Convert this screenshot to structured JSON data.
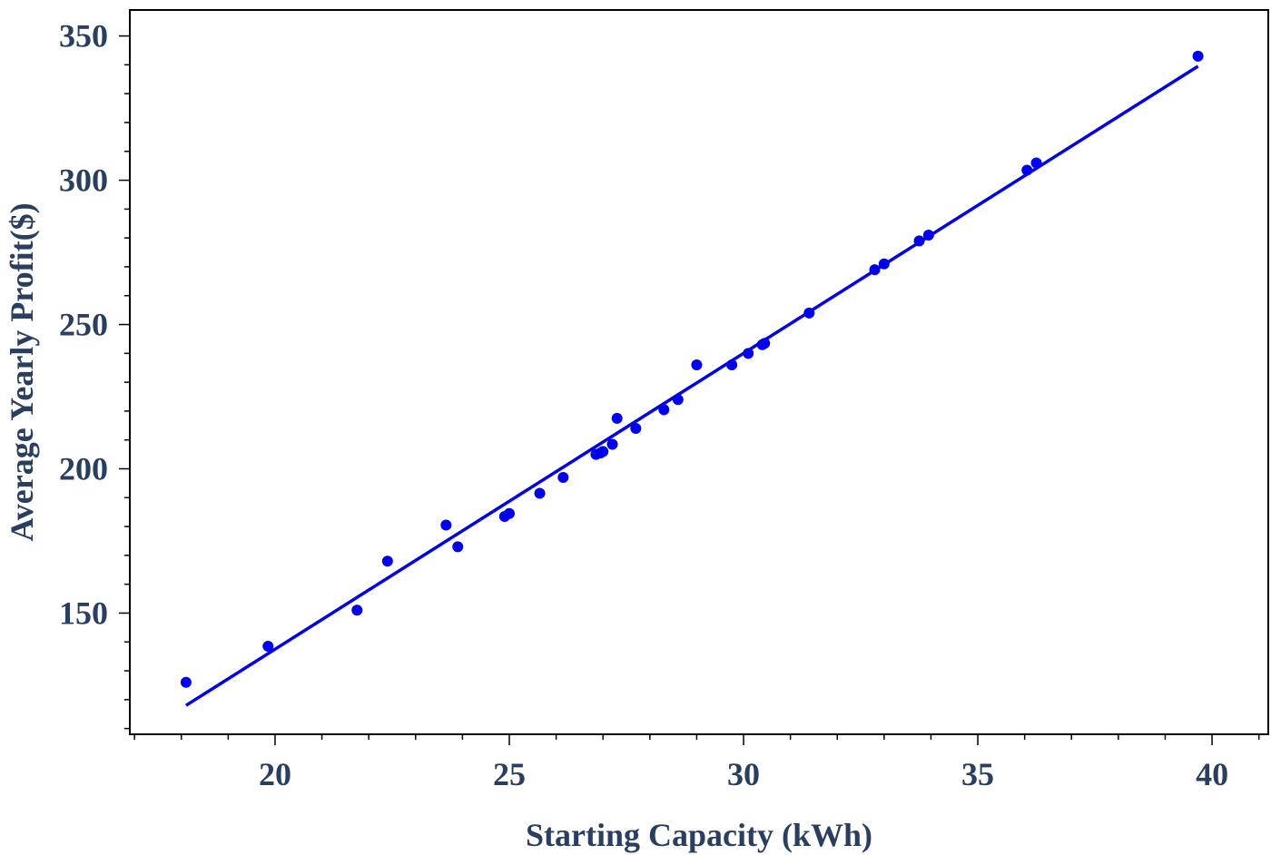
{
  "chart_data": {
    "type": "scatter",
    "title": "",
    "xlabel": "Starting Capacity (kWh)",
    "ylabel": "Average Yearly Profit($)",
    "xlim": [
      16.9,
      41.2
    ],
    "ylim": [
      108,
      359
    ],
    "x_ticks": [
      20,
      25,
      30,
      35,
      40
    ],
    "y_ticks": [
      150,
      200,
      250,
      300,
      350
    ],
    "x_minor_step": 1,
    "y_minor_step": 10,
    "grid": false,
    "legend": "none",
    "colors": {
      "series": "#0000ee",
      "axis_text": "#2a3f5f",
      "frame": "#000000"
    },
    "series": [
      {
        "mode": "markers",
        "points": [
          [
            18.1,
            126
          ],
          [
            19.85,
            138.5
          ],
          [
            21.75,
            151
          ],
          [
            22.4,
            168
          ],
          [
            23.65,
            180.5
          ],
          [
            23.9,
            173
          ],
          [
            24.9,
            183.5
          ],
          [
            25.0,
            184.5
          ],
          [
            25.65,
            191.5
          ],
          [
            26.15,
            197
          ],
          [
            26.85,
            205
          ],
          [
            26.95,
            205.5
          ],
          [
            27.0,
            206
          ],
          [
            27.2,
            208.5
          ],
          [
            27.3,
            217.5
          ],
          [
            27.7,
            214
          ],
          [
            28.3,
            220.5
          ],
          [
            28.6,
            224
          ],
          [
            29.0,
            236
          ],
          [
            29.75,
            236
          ],
          [
            30.1,
            240
          ],
          [
            30.4,
            243
          ],
          [
            30.45,
            243.5
          ],
          [
            31.4,
            254
          ],
          [
            32.8,
            269
          ],
          [
            33.0,
            271
          ],
          [
            33.75,
            279
          ],
          [
            33.95,
            281
          ],
          [
            36.05,
            303.5
          ],
          [
            36.25,
            306
          ],
          [
            39.7,
            343
          ]
        ]
      },
      {
        "mode": "line",
        "points": [
          [
            18.1,
            118
          ],
          [
            39.7,
            339.5
          ]
        ]
      }
    ]
  }
}
